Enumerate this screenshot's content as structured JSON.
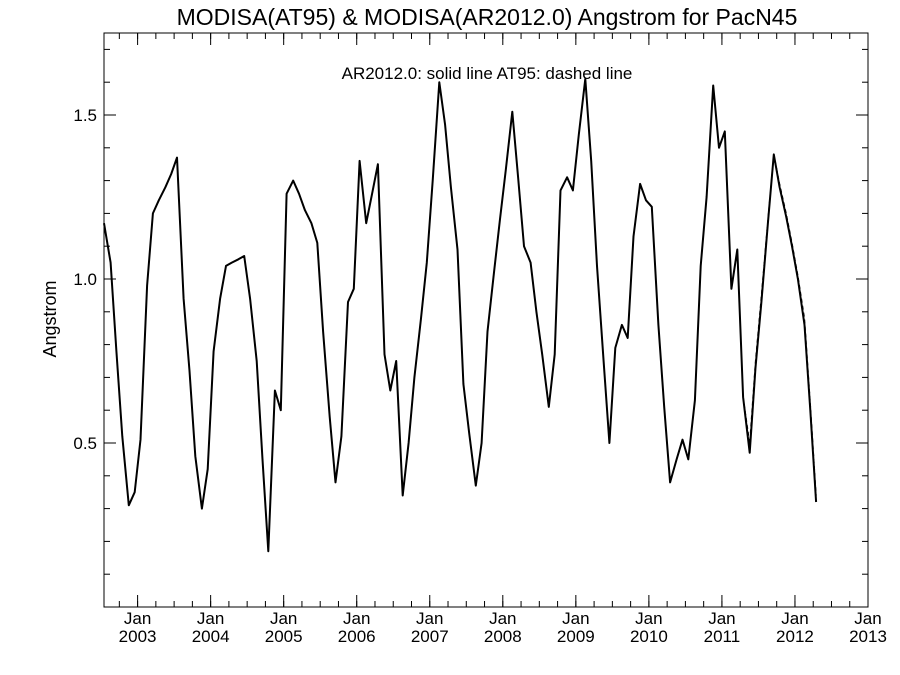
{
  "chart_data": {
    "type": "line",
    "title": "MODISA(AT95) & MODISA(AR2012.0)  Angstrom for PacN45",
    "annotation": "AR2012.0: solid line   AT95: dashed line",
    "ylabel": "Angstrom",
    "xlabel": "",
    "xlim": [
      2002.54,
      2013.0
    ],
    "ylim": [
      0.0,
      1.75
    ],
    "y_ticks_major": [
      0.5,
      1.0,
      1.5
    ],
    "y_ticks_minor": [
      0.1,
      0.2,
      0.3,
      0.4,
      0.6,
      0.7,
      0.8,
      0.9,
      1.1,
      1.2,
      1.3,
      1.4,
      1.6,
      1.7
    ],
    "x_ticks": [
      {
        "value": 2003.0,
        "month": "Jan",
        "year": "2003"
      },
      {
        "value": 2004.0,
        "month": "Jan",
        "year": "2004"
      },
      {
        "value": 2005.0,
        "month": "Jan",
        "year": "2005"
      },
      {
        "value": 2006.0,
        "month": "Jan",
        "year": "2006"
      },
      {
        "value": 2007.0,
        "month": "Jan",
        "year": "2007"
      },
      {
        "value": 2008.0,
        "month": "Jan",
        "year": "2008"
      },
      {
        "value": 2009.0,
        "month": "Jan",
        "year": "2009"
      },
      {
        "value": 2010.0,
        "month": "Jan",
        "year": "2010"
      },
      {
        "value": 2011.0,
        "month": "Jan",
        "year": "2011"
      },
      {
        "value": 2012.0,
        "month": "Jan",
        "year": "2012"
      },
      {
        "value": 2013.0,
        "month": "Jan",
        "year": "2013"
      }
    ],
    "x_minor_step": 0.25,
    "series": [
      {
        "style": "solid",
        "points": [
          [
            2002.54,
            1.17
          ],
          [
            2002.63,
            1.05
          ],
          [
            2002.71,
            0.78
          ],
          [
            2002.79,
            0.52
          ],
          [
            2002.88,
            0.31
          ],
          [
            2002.96,
            0.35
          ],
          [
            2003.04,
            0.51
          ],
          [
            2003.13,
            0.98
          ],
          [
            2003.21,
            1.2
          ],
          [
            2003.29,
            1.24
          ],
          [
            2003.38,
            1.28
          ],
          [
            2003.46,
            1.32
          ],
          [
            2003.54,
            1.37
          ],
          [
            2003.63,
            0.94
          ],
          [
            2003.71,
            0.72
          ],
          [
            2003.79,
            0.46
          ],
          [
            2003.88,
            0.3
          ],
          [
            2003.96,
            0.42
          ],
          [
            2004.04,
            0.78
          ],
          [
            2004.13,
            0.94
          ],
          [
            2004.21,
            1.04
          ],
          [
            2004.29,
            1.05
          ],
          [
            2004.38,
            1.06
          ],
          [
            2004.46,
            1.07
          ],
          [
            2004.54,
            0.94
          ],
          [
            2004.63,
            0.75
          ],
          [
            2004.71,
            0.45
          ],
          [
            2004.79,
            0.17
          ],
          [
            2004.88,
            0.66
          ],
          [
            2004.96,
            0.6
          ],
          [
            2005.04,
            1.26
          ],
          [
            2005.13,
            1.3
          ],
          [
            2005.21,
            1.26
          ],
          [
            2005.29,
            1.21
          ],
          [
            2005.38,
            1.17
          ],
          [
            2005.46,
            1.11
          ],
          [
            2005.54,
            0.84
          ],
          [
            2005.63,
            0.58
          ],
          [
            2005.71,
            0.38
          ],
          [
            2005.79,
            0.52
          ],
          [
            2005.88,
            0.93
          ],
          [
            2005.96,
            0.97
          ],
          [
            2006.04,
            1.36
          ],
          [
            2006.13,
            1.17
          ],
          [
            2006.21,
            1.26
          ],
          [
            2006.29,
            1.35
          ],
          [
            2006.38,
            0.77
          ],
          [
            2006.46,
            0.66
          ],
          [
            2006.54,
            0.75
          ],
          [
            2006.63,
            0.34
          ],
          [
            2006.71,
            0.5
          ],
          [
            2006.79,
            0.7
          ],
          [
            2006.88,
            0.88
          ],
          [
            2006.96,
            1.05
          ],
          [
            2007.04,
            1.3
          ],
          [
            2007.13,
            1.6
          ],
          [
            2007.21,
            1.47
          ],
          [
            2007.29,
            1.28
          ],
          [
            2007.38,
            1.09
          ],
          [
            2007.46,
            0.68
          ],
          [
            2007.54,
            0.53
          ],
          [
            2007.63,
            0.37
          ],
          [
            2007.71,
            0.5
          ],
          [
            2007.79,
            0.84
          ],
          [
            2007.88,
            1.02
          ],
          [
            2007.96,
            1.18
          ],
          [
            2008.04,
            1.33
          ],
          [
            2008.13,
            1.51
          ],
          [
            2008.21,
            1.31
          ],
          [
            2008.29,
            1.1
          ],
          [
            2008.38,
            1.05
          ],
          [
            2008.46,
            0.9
          ],
          [
            2008.54,
            0.77
          ],
          [
            2008.63,
            0.61
          ],
          [
            2008.71,
            0.77
          ],
          [
            2008.79,
            1.27
          ],
          [
            2008.88,
            1.31
          ],
          [
            2008.96,
            1.27
          ],
          [
            2009.04,
            1.44
          ],
          [
            2009.13,
            1.61
          ],
          [
            2009.21,
            1.36
          ],
          [
            2009.29,
            1.04
          ],
          [
            2009.38,
            0.75
          ],
          [
            2009.46,
            0.5
          ],
          [
            2009.54,
            0.79
          ],
          [
            2009.63,
            0.86
          ],
          [
            2009.71,
            0.82
          ],
          [
            2009.79,
            1.13
          ],
          [
            2009.88,
            1.29
          ],
          [
            2009.96,
            1.24
          ],
          [
            2010.04,
            1.22
          ],
          [
            2010.13,
            0.86
          ],
          [
            2010.21,
            0.61
          ],
          [
            2010.29,
            0.38
          ],
          [
            2010.38,
            0.45
          ],
          [
            2010.46,
            0.51
          ],
          [
            2010.54,
            0.45
          ],
          [
            2010.63,
            0.63
          ],
          [
            2010.71,
            1.04
          ],
          [
            2010.79,
            1.25
          ],
          [
            2010.88,
            1.59
          ],
          [
            2010.96,
            1.4
          ],
          [
            2011.04,
            1.45
          ],
          [
            2011.13,
            0.97
          ],
          [
            2011.21,
            1.09
          ],
          [
            2011.29,
            0.64
          ],
          [
            2011.38,
            0.47
          ],
          [
            2011.46,
            0.73
          ],
          [
            2011.54,
            0.93
          ],
          [
            2011.63,
            1.17
          ],
          [
            2011.71,
            1.38
          ],
          [
            2011.79,
            1.28
          ],
          [
            2011.88,
            1.19
          ],
          [
            2011.96,
            1.1
          ],
          [
            2012.04,
            1.0
          ],
          [
            2012.13,
            0.86
          ],
          [
            2012.21,
            0.6
          ],
          [
            2012.29,
            0.32
          ]
        ]
      },
      {
        "style": "dashed",
        "points": [
          [
            2011.29,
            0.64
          ],
          [
            2011.38,
            0.5
          ],
          [
            2011.46,
            0.75
          ],
          [
            2011.54,
            0.95
          ],
          [
            2011.63,
            1.18
          ],
          [
            2011.71,
            1.38
          ],
          [
            2011.79,
            1.29
          ],
          [
            2011.88,
            1.2
          ],
          [
            2011.96,
            1.11
          ],
          [
            2012.04,
            1.01
          ],
          [
            2012.13,
            0.88
          ],
          [
            2012.21,
            0.62
          ],
          [
            2012.29,
            0.34
          ]
        ]
      }
    ]
  }
}
